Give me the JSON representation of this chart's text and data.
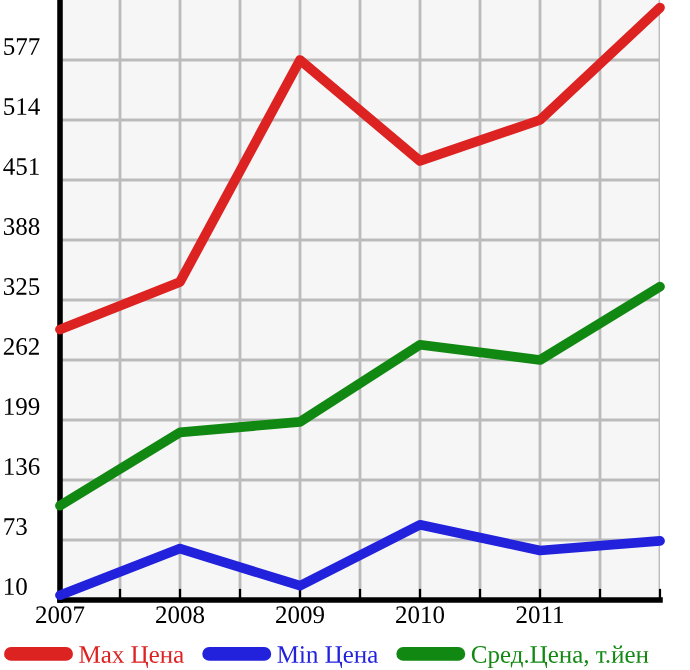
{
  "chart_data": {
    "type": "line",
    "x": [
      2007,
      2008,
      2009,
      2010,
      2011,
      2012
    ],
    "series": [
      {
        "name": "Max Цена",
        "color": "#dd2222",
        "values": [
          294,
          344,
          577,
          471,
          514,
          632
        ]
      },
      {
        "name": "Min Цена",
        "color": "#2222dd",
        "values": [
          15,
          64,
          25,
          89,
          62,
          72
        ]
      },
      {
        "name": "Сред.Цена, т.йен",
        "color": "#118811",
        "values": [
          109,
          186,
          197,
          278,
          262,
          339
        ]
      }
    ],
    "xlim": [
      2007,
      2012
    ],
    "xticks": [
      2007,
      {
        "value": 2007.5,
        "label": null
      },
      2008,
      {
        "value": 2008.5,
        "label": null
      },
      2009,
      {
        "value": 2009.5,
        "label": null
      },
      2010,
      {
        "value": 2010.5,
        "label": null
      },
      2011,
      {
        "value": 2011.5,
        "label": null
      },
      {
        "value": 2012,
        "label": null
      }
    ],
    "ylim": [
      10,
      640
    ],
    "yticks": [
      10,
      73,
      136,
      199,
      262,
      325,
      388,
      451,
      514,
      577
    ],
    "grid": true,
    "legend": "bottom",
    "marker": "none",
    "line_style": "solid"
  }
}
